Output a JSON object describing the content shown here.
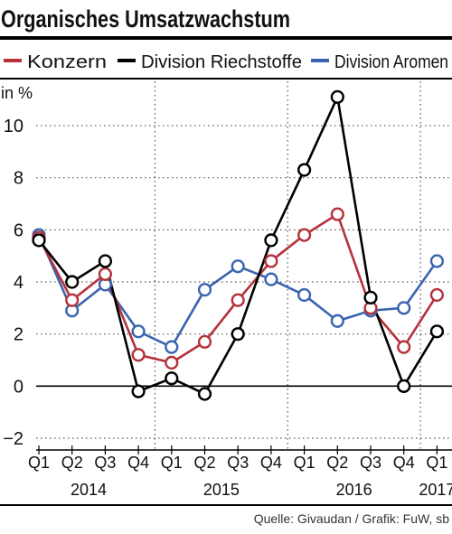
{
  "chart_data": {
    "type": "line",
    "title": "Organisches Umsatzwachstum",
    "ylabel": "in %",
    "ylim": [
      -2,
      11.5
    ],
    "yticks": [
      -2,
      0,
      2,
      4,
      6,
      8,
      10
    ],
    "grid": true,
    "legend_position": "top",
    "categories": [
      "Q1",
      "Q2",
      "Q3",
      "Q4",
      "Q1",
      "Q2",
      "Q3",
      "Q4",
      "Q1",
      "Q2",
      "Q3",
      "Q4",
      "Q1"
    ],
    "year_labels": [
      {
        "label": "2014",
        "start": 0,
        "end": 3
      },
      {
        "label": "2015",
        "start": 4,
        "end": 7
      },
      {
        "label": "2016",
        "start": 8,
        "end": 11
      },
      {
        "label": "2017",
        "start": 12,
        "end": 12
      }
    ],
    "series": [
      {
        "name": "Konzern",
        "color": "#b5323a",
        "values": [
          5.7,
          3.3,
          4.3,
          1.2,
          0.9,
          1.7,
          3.3,
          4.8,
          5.8,
          6.6,
          3.0,
          1.5,
          3.5
        ]
      },
      {
        "name": "Division Riechstoffe",
        "color": "#000000",
        "values": [
          5.6,
          4.0,
          4.8,
          -0.2,
          0.3,
          -0.3,
          2.0,
          5.6,
          8.3,
          11.1,
          3.4,
          0.0,
          2.1
        ]
      },
      {
        "name": "Division Aromen",
        "color": "#3a64b0",
        "values": [
          5.8,
          2.9,
          3.9,
          2.1,
          1.5,
          3.7,
          4.6,
          4.1,
          3.5,
          2.5,
          2.9,
          3.0,
          4.8
        ]
      }
    ],
    "source": "Quelle: Givaudan / Grafik: FuW, sb"
  }
}
